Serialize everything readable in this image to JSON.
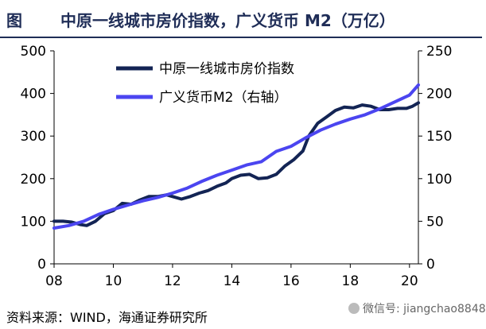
{
  "header": {
    "label": "图",
    "title": "中原一线城市房价指数，广义货币 M2（万亿）"
  },
  "source": "资料来源：WIND，海通证券研究所",
  "watermark": "微信号: jiangchao8848",
  "chart_data": {
    "type": "line",
    "x_ticks": [
      "08",
      "10",
      "12",
      "14",
      "16",
      "18",
      "20"
    ],
    "x_range": [
      2008,
      2020.3
    ],
    "y_left_range": [
      0,
      500
    ],
    "y_left_ticks": [
      "0",
      "100",
      "200",
      "300",
      "400",
      "500"
    ],
    "y_right_range": [
      0,
      250
    ],
    "y_right_ticks": [
      "0",
      "50",
      "100",
      "150",
      "200",
      "250"
    ],
    "grid": false,
    "legend_position": "top-left",
    "series": [
      {
        "name": "中原一线城市房价指数",
        "axis": "left",
        "color": "#132454",
        "x": [
          2008.0,
          2008.3,
          2008.6,
          2008.9,
          2009.1,
          2009.4,
          2009.7,
          2010.0,
          2010.3,
          2010.6,
          2010.9,
          2011.2,
          2011.5,
          2011.8,
          2012.0,
          2012.3,
          2012.6,
          2012.9,
          2013.2,
          2013.5,
          2013.8,
          2014.0,
          2014.3,
          2014.6,
          2014.9,
          2015.2,
          2015.5,
          2015.8,
          2016.1,
          2016.4,
          2016.6,
          2016.9,
          2017.2,
          2017.5,
          2017.8,
          2018.1,
          2018.4,
          2018.7,
          2019.0,
          2019.3,
          2019.6,
          2019.9,
          2020.1,
          2020.3
        ],
        "y": [
          100,
          100,
          98,
          92,
          90,
          100,
          118,
          125,
          142,
          140,
          150,
          158,
          158,
          162,
          158,
          152,
          158,
          166,
          172,
          182,
          190,
          200,
          208,
          210,
          200,
          202,
          210,
          230,
          245,
          265,
          300,
          330,
          345,
          360,
          368,
          366,
          373,
          370,
          362,
          362,
          365,
          365,
          370,
          378
        ]
      },
      {
        "name": "广义货币M2（右轴）",
        "axis": "right",
        "color": "#4b45f0",
        "x": [
          2008.0,
          2008.5,
          2009.0,
          2009.5,
          2010.0,
          2010.5,
          2011.0,
          2011.5,
          2012.0,
          2012.5,
          2013.0,
          2013.5,
          2014.0,
          2014.5,
          2015.0,
          2015.5,
          2016.0,
          2016.5,
          2017.0,
          2017.5,
          2018.0,
          2018.5,
          2019.0,
          2019.5,
          2020.0,
          2020.3
        ],
        "y": [
          42,
          45,
          50,
          58,
          64,
          69,
          74,
          78,
          83,
          89,
          97,
          104,
          110,
          116,
          120,
          132,
          138,
          148,
          157,
          164,
          170,
          175,
          182,
          190,
          198,
          210
        ]
      }
    ]
  }
}
